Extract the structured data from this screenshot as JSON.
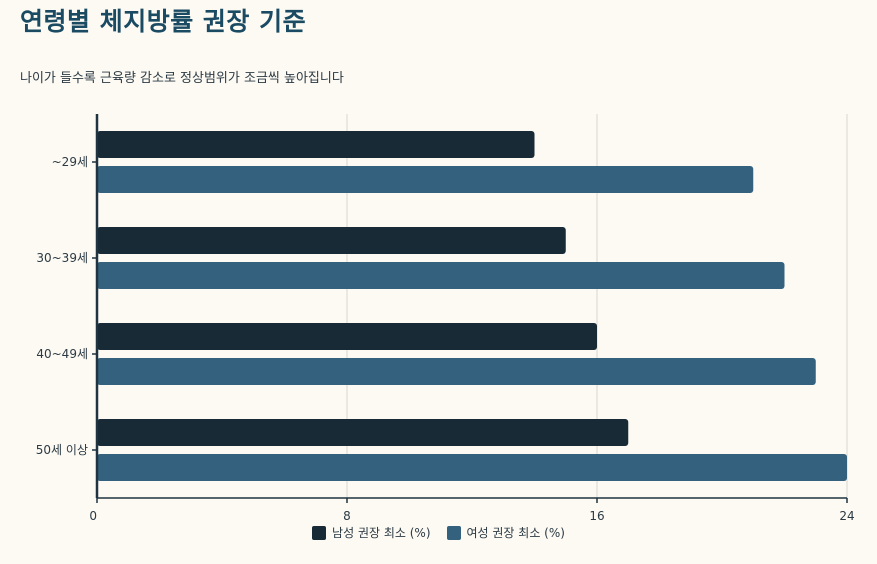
{
  "header": {
    "title": "연령별 체지방률 권장 기준",
    "subtitle": "나이가 들수록 근육량 감소로 정상범위가 조금씩 높아집니다"
  },
  "chart_data": {
    "type": "bar",
    "orientation": "horizontal",
    "categories": [
      "~29세",
      "30~39세",
      "40~49세",
      "50세 이상"
    ],
    "series": [
      {
        "name": "남성 권장 최소 (%)",
        "values": [
          14,
          15,
          16,
          17
        ],
        "color": "#172a36"
      },
      {
        "name": "여성 권장 최소 (%)",
        "values": [
          21,
          22,
          23,
          24
        ],
        "color": "#33617e"
      }
    ],
    "xlim": [
      0,
      24
    ],
    "xticks": [
      0,
      8,
      16,
      24
    ],
    "grid": true,
    "legend_position": "bottom"
  },
  "colors": {
    "title": "#1b4a63",
    "background": "#fdfaf3",
    "axis": "#1f3340",
    "grid": "#d9d6cf"
  }
}
